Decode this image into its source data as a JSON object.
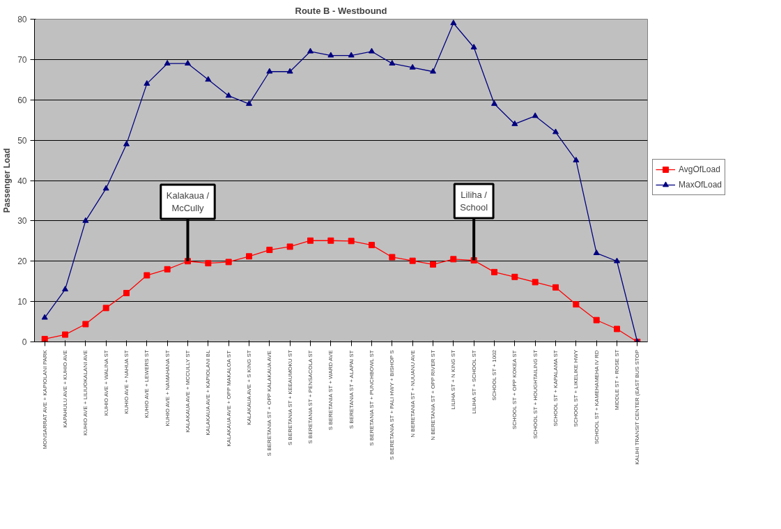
{
  "chart_data": {
    "type": "line",
    "title": "Route B - Westbound",
    "ylabel": "Passenger Load",
    "categories": [
      "MONSARRAT AVE + KAPIOLANI PARK",
      "KAPAHULU AVE + KUHIO AVE",
      "KUHIO AVE + LILIUOKALANI AVE",
      "KUHIO AVE + WALINA ST",
      "KUHIO AVE + NAHUA ST",
      "KUHIO AVE + LEWERS ST",
      "KUHIO AVE + NAMAHANA ST",
      "KALAKAUA AVE + MCCULLY ST",
      "KALAKAUA AVE + KAPIOLANI BL",
      "KALAKAUA AVE + OPP MAKALOA ST",
      "KALAKAUA AVE + S KING ST",
      "S BERETANIA ST + OPP KALAKAUA AVE",
      "S BERETANIA ST + KEEAUMOKU ST",
      "S BERETANIA ST + PENSACOLA ST",
      "S BERETANIA ST + WARD AVE",
      "S BERETANIA ST + ALAPAI ST",
      "S BERETANIA ST + PUNCHBOWL ST",
      "S BERETANIA ST + PALI HWY + BISHOP S",
      "N BERETANIA ST + NUUANU AVE",
      "N BERETANIA ST + OPP RIVER ST",
      "LILIHA ST + N KING ST",
      "LILIHA ST + SCHOOL ST",
      "SCHOOL ST + 1002",
      "SCHOOL ST + OPP KOKEA ST",
      "SCHOOL ST + HOUGHTAILING ST",
      "SCHOOL ST + KAPALAMA ST",
      "SCHOOL ST + LIKELIKE HWY",
      "SCHOOL ST + KAMEHAMEHA IV RD",
      "MIDDLE ST + ROSE ST",
      "KALIHI TRANSIT CENTER (EAST BUS STOP"
    ],
    "series": [
      {
        "name": "AvgOfLoad",
        "color": "#ff0000",
        "marker": "square",
        "values": [
          0.7,
          1.8,
          4.4,
          8.4,
          12.1,
          16.5,
          18,
          20,
          19.5,
          19.8,
          21.2,
          22.8,
          23.6,
          25.1,
          25.1,
          25,
          24,
          21,
          20.1,
          19.2,
          20.5,
          20.2,
          17.3,
          16.1,
          14.8,
          13.5,
          9.3,
          5.4,
          3.2,
          0
        ]
      },
      {
        "name": "MaxOfLoad",
        "color": "#000080",
        "marker": "triangle",
        "values": [
          6,
          13,
          30,
          38,
          49,
          64,
          69,
          69,
          65,
          61,
          59,
          67,
          67,
          72,
          71,
          71,
          72,
          69,
          68,
          67,
          79,
          73,
          59,
          54,
          56,
          52,
          45,
          22,
          20,
          0
        ]
      }
    ],
    "ylim": [
      0,
      80
    ],
    "yticks": [
      0,
      10,
      20,
      30,
      40,
      50,
      60,
      70,
      80
    ],
    "grid": "y",
    "legend": "right",
    "annotations": [
      {
        "text": "Kalakaua /\nMcCully",
        "x": "KALAKAUA AVE + MCCULLY ST",
        "y": 20
      },
      {
        "text": "Liliha /\nSchool",
        "x": "LILIHA ST + SCHOOL ST",
        "y": 20.2
      }
    ]
  }
}
